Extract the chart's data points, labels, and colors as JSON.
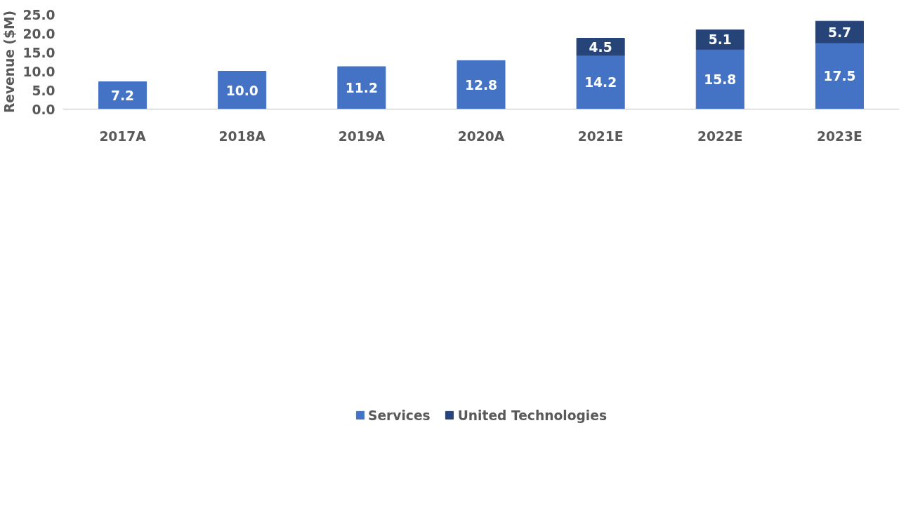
{
  "chart_data": {
    "type": "bar",
    "stacked": true,
    "ylabel": "Revenue ($M)",
    "categories": [
      "2017A",
      "2018A",
      "2019A",
      "2020A",
      "2021E",
      "2022E",
      "2023E"
    ],
    "series": [
      {
        "name": "Services",
        "color": "#4472c4",
        "values": [
          7.2,
          10.0,
          11.2,
          12.8,
          14.2,
          15.8,
          17.5
        ],
        "value_labels": [
          "7.2",
          "10.0",
          "11.2",
          "12.8",
          "14.2",
          "15.8",
          "17.5"
        ]
      },
      {
        "name": "United Technologies",
        "color": "#264478",
        "values": [
          null,
          null,
          null,
          null,
          4.5,
          5.1,
          5.7
        ],
        "value_labels": [
          null,
          null,
          null,
          null,
          "4.5",
          "5.1",
          "5.7"
        ]
      }
    ],
    "ylim": [
      0,
      25
    ],
    "yticks": [
      {
        "value": 0,
        "label": "0.0"
      },
      {
        "value": 5,
        "label": "5.0"
      },
      {
        "value": 10,
        "label": "10.0"
      },
      {
        "value": 15,
        "label": "15.0"
      },
      {
        "value": 20,
        "label": "20.0"
      },
      {
        "value": 25,
        "label": "25.0"
      }
    ],
    "grid": false,
    "legend": "bottom"
  }
}
